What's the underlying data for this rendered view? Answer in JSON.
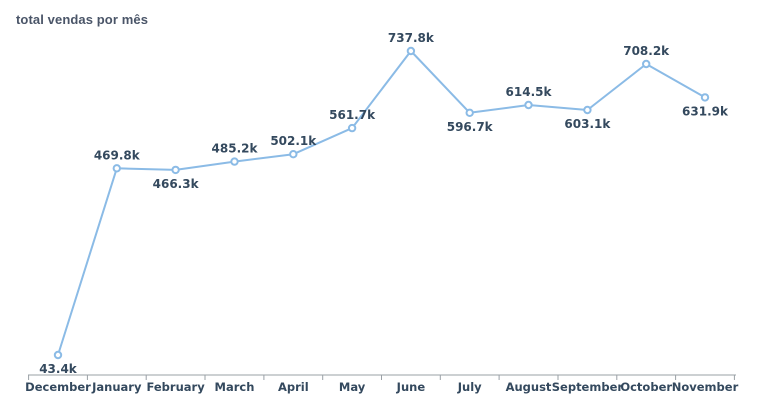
{
  "chart_data": {
    "type": "line",
    "title": "total vendas por mês",
    "xlabel": "",
    "ylabel": "",
    "categories": [
      "December",
      "January",
      "February",
      "March",
      "April",
      "May",
      "June",
      "July",
      "August",
      "September",
      "October",
      "November"
    ],
    "series": [
      {
        "values": [
          43.4,
          469.8,
          466.3,
          485.2,
          502.1,
          561.7,
          737.8,
          596.7,
          614.5,
          603.1,
          708.2,
          631.9
        ],
        "labels": [
          "43.4k",
          "469.8k",
          "466.3k",
          "485.2k",
          "502.1k",
          "561.7k",
          "737.8k",
          "596.7k",
          "614.5k",
          "603.1k",
          "708.2k",
          "631.9k"
        ],
        "label_position": [
          "below",
          "above",
          "below",
          "above",
          "above",
          "above",
          "above",
          "below",
          "above",
          "below",
          "above",
          "below"
        ]
      }
    ],
    "ylim": [
      0,
      737.8
    ],
    "y_unit": "k",
    "grid": false,
    "legend": "none",
    "colors": {
      "line": "#8bbbe6",
      "marker_fill": "#ffffff",
      "labels": "#34495e",
      "axis": "#9aa0a6",
      "title": "#4a5568"
    }
  }
}
